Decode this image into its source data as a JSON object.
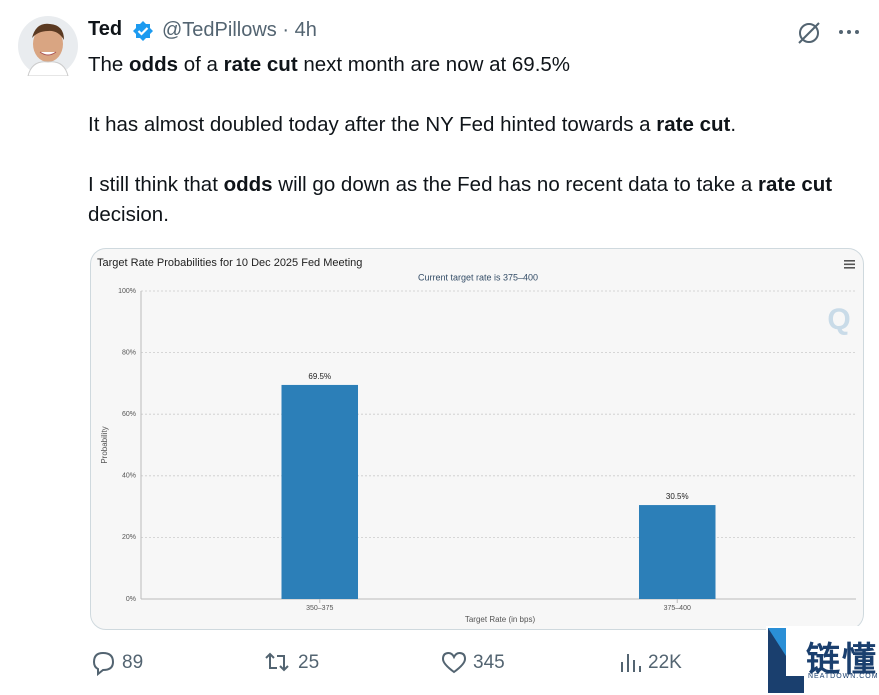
{
  "tweet": {
    "name": "Ted",
    "handle": "@TedPillows",
    "time": "4h",
    "paragraphs": [
      [
        {
          "text": "The ",
          "bold": false
        },
        {
          "text": "odds",
          "bold": true
        },
        {
          "text": " of a ",
          "bold": false
        },
        {
          "text": "rate cut",
          "bold": true
        },
        {
          "text": " next month are now at 69.5%",
          "bold": false
        }
      ],
      [
        {
          "text": "It has almost doubled today after the NY Fed hinted towards a ",
          "bold": false
        },
        {
          "text": "rate cut",
          "bold": true
        },
        {
          "text": ".",
          "bold": false
        }
      ],
      [
        {
          "text": "I still think that ",
          "bold": false
        },
        {
          "text": "odds",
          "bold": true
        },
        {
          "text": " will go down as the Fed has no recent data to take a ",
          "bold": false
        },
        {
          "text": "rate cut",
          "bold": true
        },
        {
          "text": " decision.",
          "bold": false
        }
      ]
    ],
    "actions": {
      "replies": "89",
      "reposts": "25",
      "likes": "345",
      "views": "22K"
    },
    "watermark": {
      "title": "链懂",
      "site": "NEATDOWN.COM"
    }
  },
  "chart_data": {
    "type": "bar",
    "title": "Target Rate Probabilities for 10 Dec 2025 Fed Meeting",
    "subtitle": "Current target rate is 375–400",
    "x_label": "Target Rate (in bps)",
    "y_label": "Probability",
    "categories": [
      "350–375",
      "375–400"
    ],
    "values": [
      69.5,
      30.5
    ],
    "value_labels": [
      "69.5%",
      "30.5%"
    ],
    "color": "#2c7fb8",
    "ylim": [
      0,
      100
    ],
    "yticks": [
      {
        "value": 0,
        "label": "0%"
      },
      {
        "value": 20,
        "label": "20%"
      },
      {
        "value": 40,
        "label": "40%"
      },
      {
        "value": 60,
        "label": "60%"
      },
      {
        "value": 80,
        "label": "80%"
      },
      {
        "value": 100,
        "label": "100%"
      }
    ],
    "grid": true
  }
}
